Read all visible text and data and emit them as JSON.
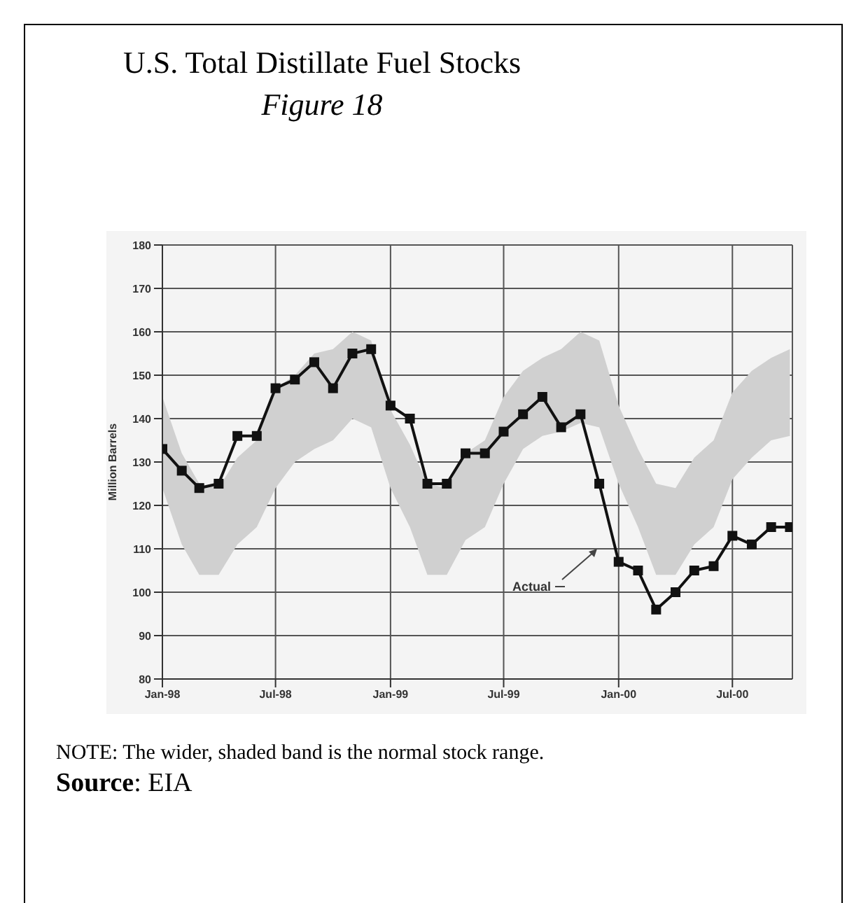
{
  "chart_data": {
    "type": "line",
    "title": "U.S. Total Distillate Fuel Stocks",
    "subtitle": "Figure 18",
    "ylabel": "Million Barrels",
    "x": [
      "1998-01",
      "1998-02",
      "1998-03",
      "1998-04",
      "1998-05",
      "1998-06",
      "1998-07",
      "1998-08",
      "1998-09",
      "1998-10",
      "1998-11",
      "1998-12",
      "1999-01",
      "1999-02",
      "1999-03",
      "1999-04",
      "1999-05",
      "1999-06",
      "1999-07",
      "1999-08",
      "1999-09",
      "1999-10",
      "1999-11",
      "1999-12",
      "2000-01",
      "2000-02",
      "2000-03",
      "2000-04",
      "2000-05",
      "2000-06",
      "2000-07",
      "2000-08",
      "2000-09",
      "2000-10"
    ],
    "series": [
      {
        "name": "Actual",
        "color": "#111111",
        "values": [
          133,
          128,
          124,
          125,
          136,
          136,
          147,
          149,
          153,
          147,
          155,
          156,
          143,
          140,
          125,
          125,
          132,
          132,
          137,
          141,
          145,
          138,
          141,
          125,
          107,
          105,
          96,
          100,
          105,
          106,
          113,
          111,
          115,
          115
        ],
        "lower": [
          124,
          111,
          104,
          104,
          111,
          115,
          124,
          130,
          133,
          135,
          140,
          138,
          124,
          115,
          104,
          104,
          112,
          115,
          125,
          133,
          136,
          137,
          139,
          138,
          125,
          115,
          104,
          104,
          111,
          115,
          126,
          131,
          135,
          136
        ],
        "upper": [
          145,
          132,
          125,
          124,
          131,
          135,
          147,
          150,
          155,
          156,
          160,
          158,
          142,
          134,
          125,
          124,
          132,
          135,
          145,
          151,
          154,
          156,
          160,
          158,
          143,
          133,
          125,
          124,
          131,
          135,
          146,
          151,
          154,
          156
        ]
      }
    ],
    "xlim": [
      "1998-01",
      "2000-10-05"
    ],
    "xticks": [
      {
        "value": "1998-01",
        "label": "Jan-98"
      },
      {
        "value": "1998-07",
        "label": "Jul-98"
      },
      {
        "value": "1999-01",
        "label": "Jan-99"
      },
      {
        "value": "1999-07",
        "label": "Jul-99"
      },
      {
        "value": "2000-01",
        "label": "Jan-00"
      },
      {
        "value": "2000-07",
        "label": "Jul-00"
      }
    ],
    "ylim": [
      80,
      180
    ],
    "yticks": [
      80,
      90,
      100,
      110,
      120,
      130,
      140,
      150,
      160,
      170,
      180
    ],
    "grid": true,
    "marker": "square",
    "line_style": "solid",
    "annotations": [
      "NOTE: The wider, shaded band is the normal stock range.",
      "Source: EIA"
    ]
  }
}
